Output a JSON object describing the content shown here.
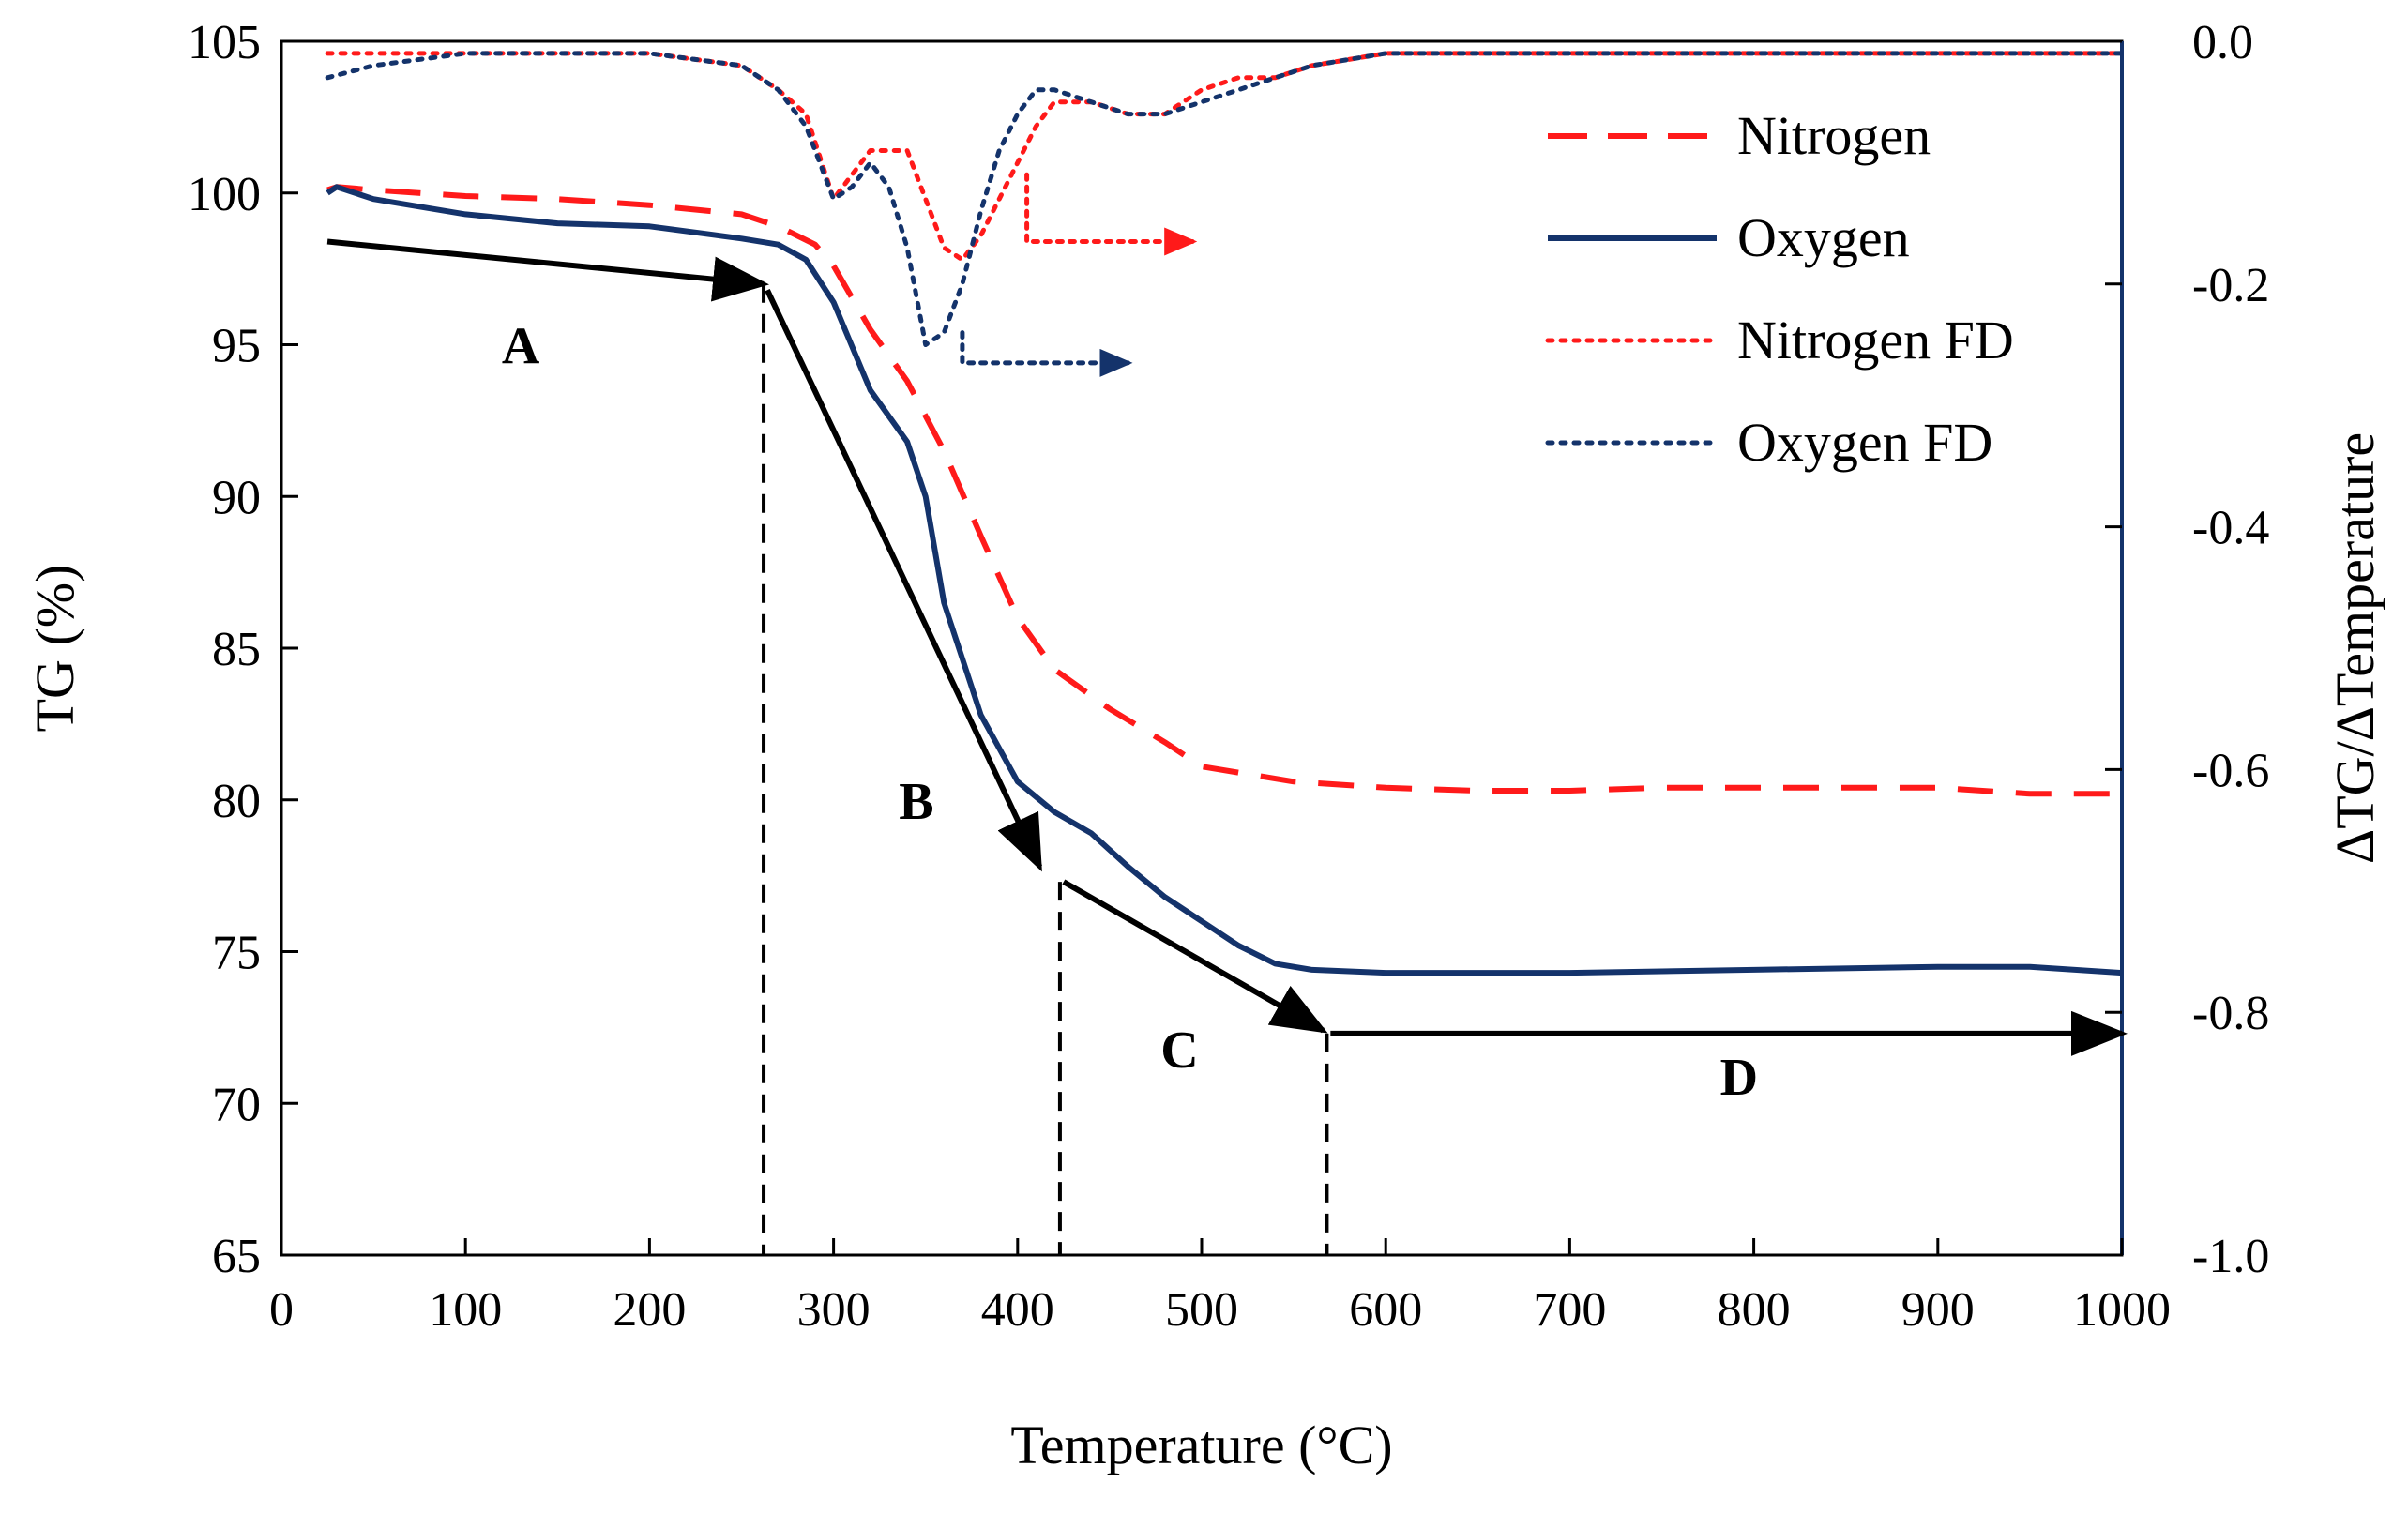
{
  "chart_data": {
    "type": "line",
    "title": "",
    "xlabel": "Temperature (°C)",
    "ylabel": "TG (%)",
    "y2label": "ΔTG/ΔTemperature",
    "xlim": [
      0,
      1000
    ],
    "ylim": [
      65,
      105
    ],
    "y2lim": [
      -1.0,
      0.0
    ],
    "xticks": [
      "0",
      "100",
      "200",
      "300",
      "400",
      "500",
      "600",
      "700",
      "800",
      "900",
      "1000"
    ],
    "yticks": [
      "65",
      "70",
      "75",
      "80",
      "85",
      "90",
      "95",
      "100",
      "105"
    ],
    "y2ticks": [
      "-1.0",
      "-0.8",
      "-0.6",
      "-0.4",
      "-0.2",
      "0.0"
    ],
    "legend_position": "top-right",
    "legend": [
      "Nitrogen",
      "Oxygen",
      "Nitrogen FD",
      "Oxygen FD"
    ],
    "colors": {
      "nitrogen": "#ff1a1a",
      "oxygen": "#14336b",
      "annotation": "#000000"
    },
    "series": [
      {
        "name": "Nitrogen",
        "axis": "left",
        "style": "dashed",
        "color": "#ff1a1a",
        "x": [
          25,
          30,
          50,
          100,
          150,
          200,
          250,
          270,
          290,
          300,
          320,
          340,
          360,
          380,
          400,
          420,
          450,
          480,
          500,
          550,
          600,
          650,
          700,
          750,
          800,
          850,
          900,
          950,
          1000
        ],
        "y": [
          100.1,
          100.2,
          100.1,
          99.9,
          99.8,
          99.6,
          99.3,
          98.9,
          98.3,
          97.6,
          95.5,
          93.8,
          91.5,
          88.7,
          86.0,
          84.3,
          83.0,
          81.9,
          81.1,
          80.6,
          80.4,
          80.3,
          80.3,
          80.4,
          80.4,
          80.4,
          80.4,
          80.2,
          80.2
        ]
      },
      {
        "name": "Oxygen",
        "axis": "left",
        "style": "solid",
        "color": "#14336b",
        "x": [
          25,
          30,
          50,
          100,
          150,
          200,
          250,
          270,
          285,
          300,
          320,
          340,
          350,
          360,
          380,
          400,
          420,
          440,
          460,
          480,
          500,
          520,
          540,
          560,
          600,
          700,
          800,
          900,
          950,
          1000
        ],
        "y": [
          100.0,
          100.2,
          99.8,
          99.3,
          99.0,
          98.9,
          98.5,
          98.3,
          97.8,
          96.4,
          93.5,
          91.8,
          90.0,
          86.5,
          82.8,
          80.6,
          79.6,
          78.9,
          77.8,
          76.8,
          76.0,
          75.2,
          74.6,
          74.4,
          74.3,
          74.3,
          74.4,
          74.5,
          74.5,
          74.3
        ]
      },
      {
        "name": "Nitrogen FD",
        "axis": "right",
        "style": "dotted",
        "color": "#ff1a1a",
        "x": [
          25,
          50,
          100,
          150,
          200,
          250,
          270,
          285,
          300,
          310,
          320,
          330,
          340,
          350,
          360,
          370,
          380,
          390,
          400,
          410,
          420,
          440,
          460,
          480,
          500,
          520,
          540,
          560,
          600,
          700,
          800,
          900,
          1000
        ],
        "y": [
          -0.01,
          -0.01,
          -0.01,
          -0.01,
          -0.01,
          -0.02,
          -0.04,
          -0.06,
          -0.13,
          -0.11,
          -0.09,
          -0.09,
          -0.09,
          -0.13,
          -0.17,
          -0.18,
          -0.16,
          -0.13,
          -0.1,
          -0.07,
          -0.05,
          -0.05,
          -0.06,
          -0.06,
          -0.04,
          -0.03,
          -0.03,
          -0.02,
          -0.01,
          -0.01,
          -0.01,
          -0.01,
          -0.01
        ]
      },
      {
        "name": "Oxygen FD",
        "axis": "right",
        "style": "dotted",
        "color": "#14336b",
        "x": [
          25,
          50,
          100,
          150,
          200,
          250,
          270,
          285,
          300,
          310,
          320,
          330,
          340,
          350,
          360,
          370,
          380,
          390,
          400,
          410,
          420,
          440,
          460,
          480,
          500,
          520,
          540,
          560,
          600,
          700,
          800,
          900,
          1000
        ],
        "y": [
          -0.03,
          -0.02,
          -0.01,
          -0.01,
          -0.01,
          -0.02,
          -0.04,
          -0.07,
          -0.13,
          -0.12,
          -0.1,
          -0.12,
          -0.17,
          -0.25,
          -0.24,
          -0.2,
          -0.14,
          -0.09,
          -0.06,
          -0.04,
          -0.04,
          -0.05,
          -0.06,
          -0.06,
          -0.05,
          -0.04,
          -0.03,
          -0.02,
          -0.01,
          -0.01,
          -0.01,
          -0.01,
          -0.01
        ]
      }
    ],
    "annotations": {
      "region_labels": [
        {
          "text": "A",
          "x": 130,
          "y": 95
        },
        {
          "text": "B",
          "x": 345,
          "y": 80
        },
        {
          "text": "C",
          "x": 488,
          "y": 71.8
        },
        {
          "text": "D",
          "x": 792,
          "y": 70.9
        }
      ],
      "boundaries": [
        {
          "x": 262,
          "y_top": 97.0
        },
        {
          "x": 423,
          "y_top": 77.3
        },
        {
          "x": 568,
          "y_top": 72.3
        }
      ],
      "stage_arrows": [
        {
          "from": [
            25,
            98.4
          ],
          "to": [
            262,
            97.0
          ]
        },
        {
          "from": [
            264,
            96.8
          ],
          "to": [
            412,
            77.8
          ]
        },
        {
          "from": [
            425,
            77.3
          ],
          "to": [
            566,
            72.4
          ]
        },
        {
          "from": [
            570,
            72.3
          ],
          "to": [
            1000,
            72.3
          ]
        }
      ],
      "axis_pointers": [
        {
          "series": "Nitrogen FD",
          "points": [
            [
              405,
              -0.11
            ],
            [
              405,
              -0.165
            ],
            [
              495,
              -0.165
            ]
          ]
        },
        {
          "series": "Oxygen FD",
          "points": [
            [
              370,
              -0.24
            ],
            [
              370,
              -0.265
            ],
            [
              460,
              -0.265
            ]
          ]
        }
      ]
    }
  }
}
